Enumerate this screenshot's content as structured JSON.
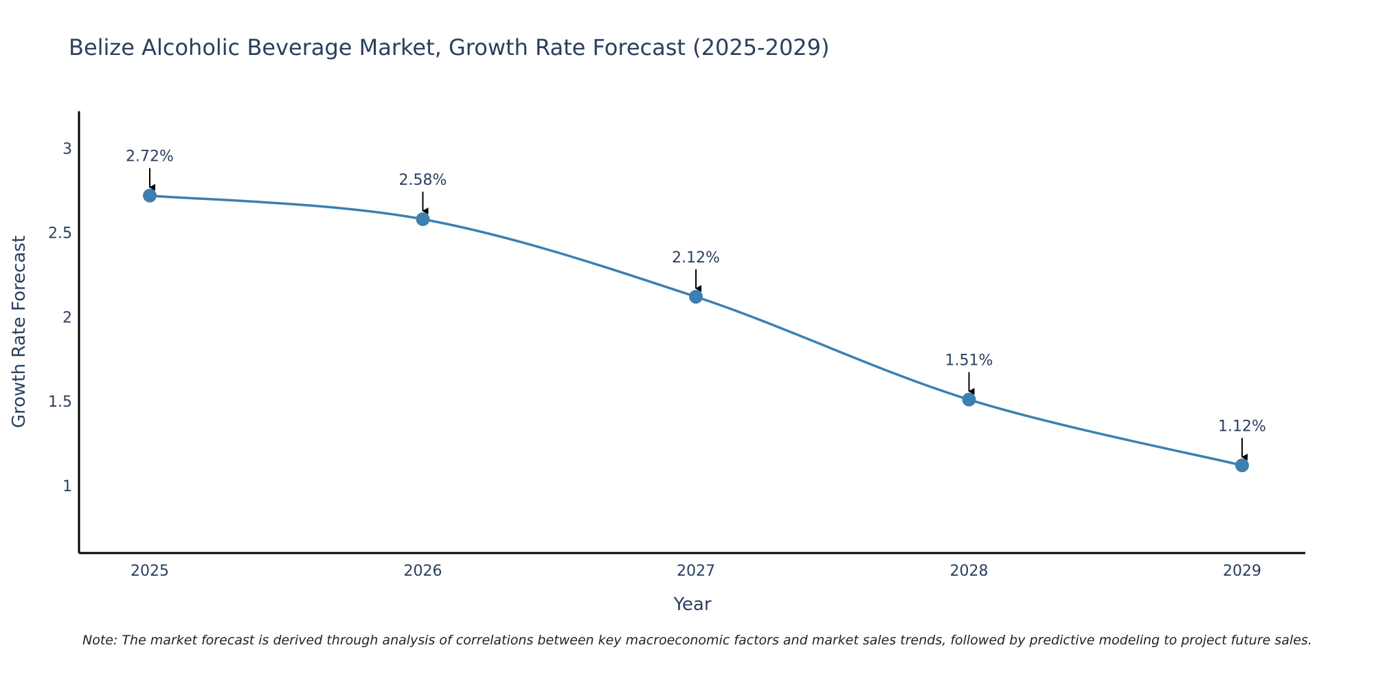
{
  "chart_data": {
    "type": "line",
    "title": "Belize Alcoholic Beverage Market, Growth Rate Forecast (2025-2029)",
    "xlabel": "Year",
    "ylabel": "Growth Rate Forecast",
    "categories": [
      "2025",
      "2026",
      "2027",
      "2028",
      "2029"
    ],
    "values": [
      2.72,
      2.58,
      2.12,
      1.51,
      1.12
    ],
    "data_labels": [
      "2.72%",
      "2.58%",
      "2.12%",
      "1.51%",
      "1.12%"
    ],
    "ylim": [
      0.6,
      3.22
    ],
    "yticks": [
      1,
      1.5,
      2,
      2.5,
      3
    ],
    "ytick_labels": [
      "1",
      "1.5",
      "2",
      "2.5",
      "3"
    ],
    "line_shape": "spline",
    "grid": false,
    "legend": "none",
    "colors": {
      "line": "#3d7fb0",
      "marker": "#3d7fb0",
      "arrow": "#000000",
      "axis": "#000000",
      "text": "#2a3f5f"
    },
    "note": "Note: The market forecast is derived through analysis of correlations between key macroeconomic factors and market sales trends, followed by predictive modeling to project future sales."
  }
}
